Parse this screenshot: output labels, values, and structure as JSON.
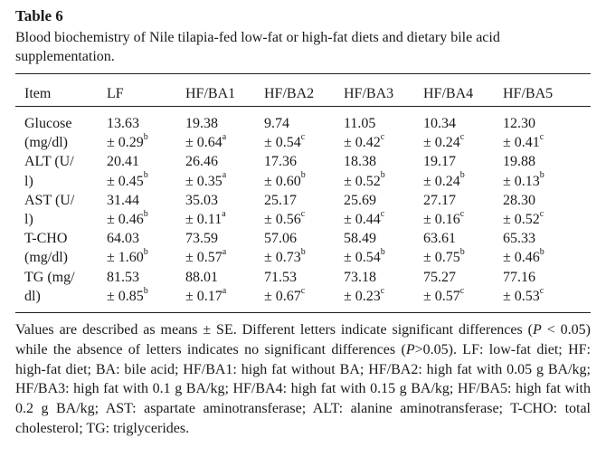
{
  "table_title": "Table 6",
  "caption": "Blood biochemistry of Nile tilapia-fed low-fat or high-fat diets and dietary bile acid supplementation.",
  "headers": [
    "Item",
    "LF",
    "HF/BA1",
    "HF/BA2",
    "HF/BA3",
    "HF/BA4",
    "HF/BA5"
  ],
  "rows": [
    {
      "item_line1": "Glucose",
      "item_line2": "(mg/dl)",
      "cells": [
        {
          "mean": "13.63",
          "se": "± 0.29",
          "sig": "b"
        },
        {
          "mean": "19.38",
          "se": "± 0.64",
          "sig": "a"
        },
        {
          "mean": "9.74",
          "se": "± 0.54",
          "sig": "c"
        },
        {
          "mean": "11.05",
          "se": "± 0.42",
          "sig": "c"
        },
        {
          "mean": "10.34",
          "se": "± 0.24",
          "sig": "c"
        },
        {
          "mean": "12.30",
          "se": "± 0.41",
          "sig": "c"
        }
      ]
    },
    {
      "item_line1": "ALT (U/",
      "item_line2": "l)",
      "cells": [
        {
          "mean": "20.41",
          "se": "± 0.45",
          "sig": "b"
        },
        {
          "mean": "26.46",
          "se": "± 0.35",
          "sig": "a"
        },
        {
          "mean": "17.36",
          "se": "± 0.60",
          "sig": "b"
        },
        {
          "mean": "18.38",
          "se": "± 0.52",
          "sig": "b"
        },
        {
          "mean": "19.17",
          "se": "± 0.24",
          "sig": "b"
        },
        {
          "mean": "19.88",
          "se": "± 0.13",
          "sig": "b"
        }
      ]
    },
    {
      "item_line1": "AST (U/",
      "item_line2": "l)",
      "cells": [
        {
          "mean": "31.44",
          "se": "± 0.46",
          "sig": "b"
        },
        {
          "mean": "35.03",
          "se": "± 0.11",
          "sig": "a"
        },
        {
          "mean": "25.17",
          "se": "± 0.56",
          "sig": "c"
        },
        {
          "mean": "25.69",
          "se": "± 0.44",
          "sig": "c"
        },
        {
          "mean": "27.17",
          "se": "± 0.16",
          "sig": "c"
        },
        {
          "mean": "28.30",
          "se": "± 0.52",
          "sig": "c"
        }
      ]
    },
    {
      "item_line1": "T-CHO",
      "item_line2": "(mg/dl)",
      "cells": [
        {
          "mean": "64.03",
          "se": "± 1.60",
          "sig": "b"
        },
        {
          "mean": "73.59",
          "se": "± 0.57",
          "sig": "a"
        },
        {
          "mean": "57.06",
          "se": "± 0.73",
          "sig": "b"
        },
        {
          "mean": "58.49",
          "se": "± 0.54",
          "sig": "b"
        },
        {
          "mean": "63.61",
          "se": "± 0.75",
          "sig": "b"
        },
        {
          "mean": "65.33",
          "se": "± 0.46",
          "sig": "b"
        }
      ]
    },
    {
      "item_line1": "TG (mg/",
      "item_line2": "dl)",
      "cells": [
        {
          "mean": "81.53",
          "se": "± 0.85",
          "sig": "b"
        },
        {
          "mean": "88.01",
          "se": "± 0.17",
          "sig": "a"
        },
        {
          "mean": "71.53",
          "se": "± 0.67",
          "sig": "c"
        },
        {
          "mean": "73.18",
          "se": "± 0.23",
          "sig": "c"
        },
        {
          "mean": "75.27",
          "se": "± 0.57",
          "sig": "c"
        },
        {
          "mean": "77.16",
          "se": "± 0.53",
          "sig": "c"
        }
      ]
    }
  ],
  "footnote": {
    "part1": "Values are described as means ± SE. Different letters indicate significant differences (",
    "p1": "P",
    "part2": " < 0.05) while the absence of letters indicates no significant differences (",
    "p2": "P",
    "part3": ">0.05). LF: low-fat diet; HF: high-fat diet; BA: bile acid; HF/BA1: high fat without BA; HF/BA2: high fat with 0.05 g BA/kg; HF/BA3: high fat with 0.1 g BA/kg; HF/BA4: high fat with 0.15 g BA/kg; HF/BA5: high fat with 0.2 g BA/kg; AST: aspartate aminotransferase; ALT: alanine aminotransferase; T-CHO: total cholesterol; TG: triglycerides."
  }
}
